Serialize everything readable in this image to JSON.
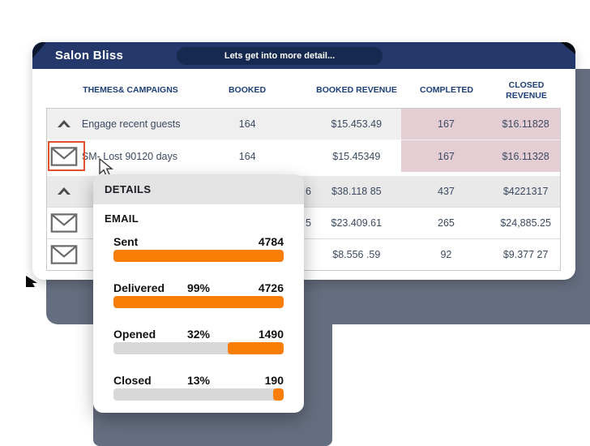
{
  "header": {
    "brand": "Salon Bliss",
    "pill": "Lets get into more detail..."
  },
  "table": {
    "columns": [
      "THEMES& CAMPAIGNS",
      "BOOKED",
      "BOOKED REVENUE",
      "COMPLETED",
      "CLOSED REVENUE"
    ],
    "rows": [
      {
        "icon": "chevron-up",
        "name": "Engage recent guests",
        "booked": "164",
        "booked_revenue": "$15.453.49",
        "completed": "167",
        "closed_revenue": "$16.11828"
      },
      {
        "icon": "envelope",
        "name": "SM- Lost 90120 days",
        "booked": "164",
        "booked_revenue": "$15.45349",
        "completed": "167",
        "closed_revenue": "$16.11328"
      },
      {
        "icon": "chevron-up",
        "booked_partial": "6",
        "booked_revenue": "$38.118 85",
        "completed": "437",
        "closed_revenue": "$4221317"
      },
      {
        "icon": "envelope",
        "booked_partial": "5",
        "booked_revenue": "$23.409.61",
        "completed": "265",
        "closed_revenue": "$24,885.25"
      },
      {
        "icon": "envelope",
        "booked_partial": "",
        "booked_revenue": "$8.556 .59",
        "completed": "92",
        "closed_revenue": "$9.377 27"
      }
    ]
  },
  "popup": {
    "title": "DETAILS",
    "section": "EMAIL"
  },
  "chart_data": {
    "type": "bar",
    "title": "EMAIL",
    "orientation": "horizontal",
    "fill_anchor": "right",
    "categories": [
      "Sent",
      "Delivered",
      "Opened",
      "Closed"
    ],
    "values": [
      "4784",
      "4726",
      "1490",
      "190"
    ],
    "percent_labels": [
      "",
      "99%",
      "32%",
      "13%"
    ],
    "fill_pct": [
      100,
      100,
      33,
      6
    ],
    "bar_color": "#f97d06",
    "track_color": "#d8d8d8"
  },
  "colors": {
    "header_navy": "#24386b",
    "pill_navy": "#16294e",
    "column_header_text": "#1d3f78",
    "cell_text": "#3c4a61",
    "pink_highlight": "#e4ced4",
    "row_grey": "#efefef",
    "slate_background": "#656e80",
    "accent_orange": "#f97d06",
    "envelope_highlight": "#e2512e"
  }
}
